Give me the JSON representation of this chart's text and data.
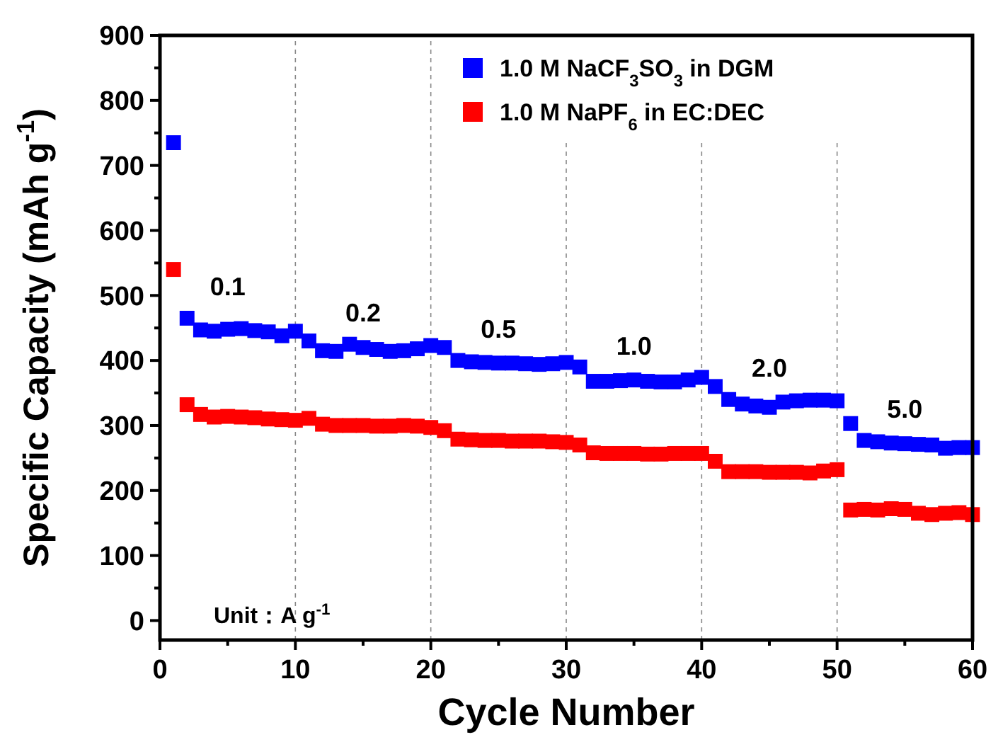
{
  "chart_data": {
    "type": "scatter",
    "xlabel": "Cycle Number",
    "ylabel": "Specific Capacity (mAh g$^{-1}$)",
    "x": [
      1,
      2,
      3,
      4,
      5,
      6,
      7,
      8,
      9,
      10,
      11,
      12,
      13,
      14,
      15,
      16,
      17,
      18,
      19,
      20,
      21,
      22,
      23,
      24,
      25,
      26,
      27,
      28,
      29,
      30,
      31,
      32,
      33,
      34,
      35,
      36,
      37,
      38,
      39,
      40,
      41,
      42,
      43,
      44,
      45,
      46,
      47,
      48,
      49,
      50,
      51,
      52,
      53,
      54,
      55,
      56,
      57,
      58,
      59,
      60
    ],
    "series": [
      {
        "name": "1.0 M NaCF$_{3}$SO$_{3}$ in DGM",
        "color": "#0000ff",
        "values": [
          735,
          465,
          447,
          445,
          448,
          449,
          446,
          444,
          438,
          445,
          430,
          415,
          414,
          425,
          420,
          417,
          414,
          415,
          418,
          423,
          420,
          400,
          398,
          397,
          396,
          396,
          395,
          394,
          395,
          397,
          390,
          368,
          368,
          369,
          370,
          368,
          367,
          367,
          370,
          374,
          360,
          340,
          333,
          330,
          328,
          336,
          338,
          339,
          339,
          338,
          303,
          277,
          275,
          273,
          272,
          271,
          270,
          265,
          266,
          266
        ]
      },
      {
        "name": "1.0 M NaPF$_{6}$ in EC:DEC",
        "color": "#ff0000",
        "values": [
          540,
          332,
          317,
          313,
          314,
          313,
          312,
          310,
          309,
          308,
          311,
          302,
          300,
          300,
          300,
          299,
          299,
          300,
          299,
          297,
          292,
          279,
          278,
          277,
          277,
          276,
          276,
          276,
          275,
          274,
          270,
          258,
          257,
          257,
          257,
          256,
          256,
          257,
          257,
          257,
          245,
          229,
          229,
          229,
          228,
          228,
          228,
          227,
          230,
          232,
          170,
          171,
          170,
          172,
          171,
          165,
          163,
          165,
          166,
          163
        ]
      }
    ],
    "xlim": [
      0,
      60
    ],
    "xticks": [
      0,
      10,
      20,
      30,
      40,
      50,
      60
    ],
    "ylim": [
      -30,
      900
    ],
    "yticks": [
      0,
      100,
      200,
      300,
      400,
      500,
      600,
      700,
      800,
      900
    ],
    "grid": "x",
    "legend": "top right",
    "marker": "square",
    "annotations": [
      "0.1",
      "0.2",
      "0.5",
      "1.0",
      "2.0",
      "5.0",
      "Unit：A g$^{-1}$"
    ]
  }
}
